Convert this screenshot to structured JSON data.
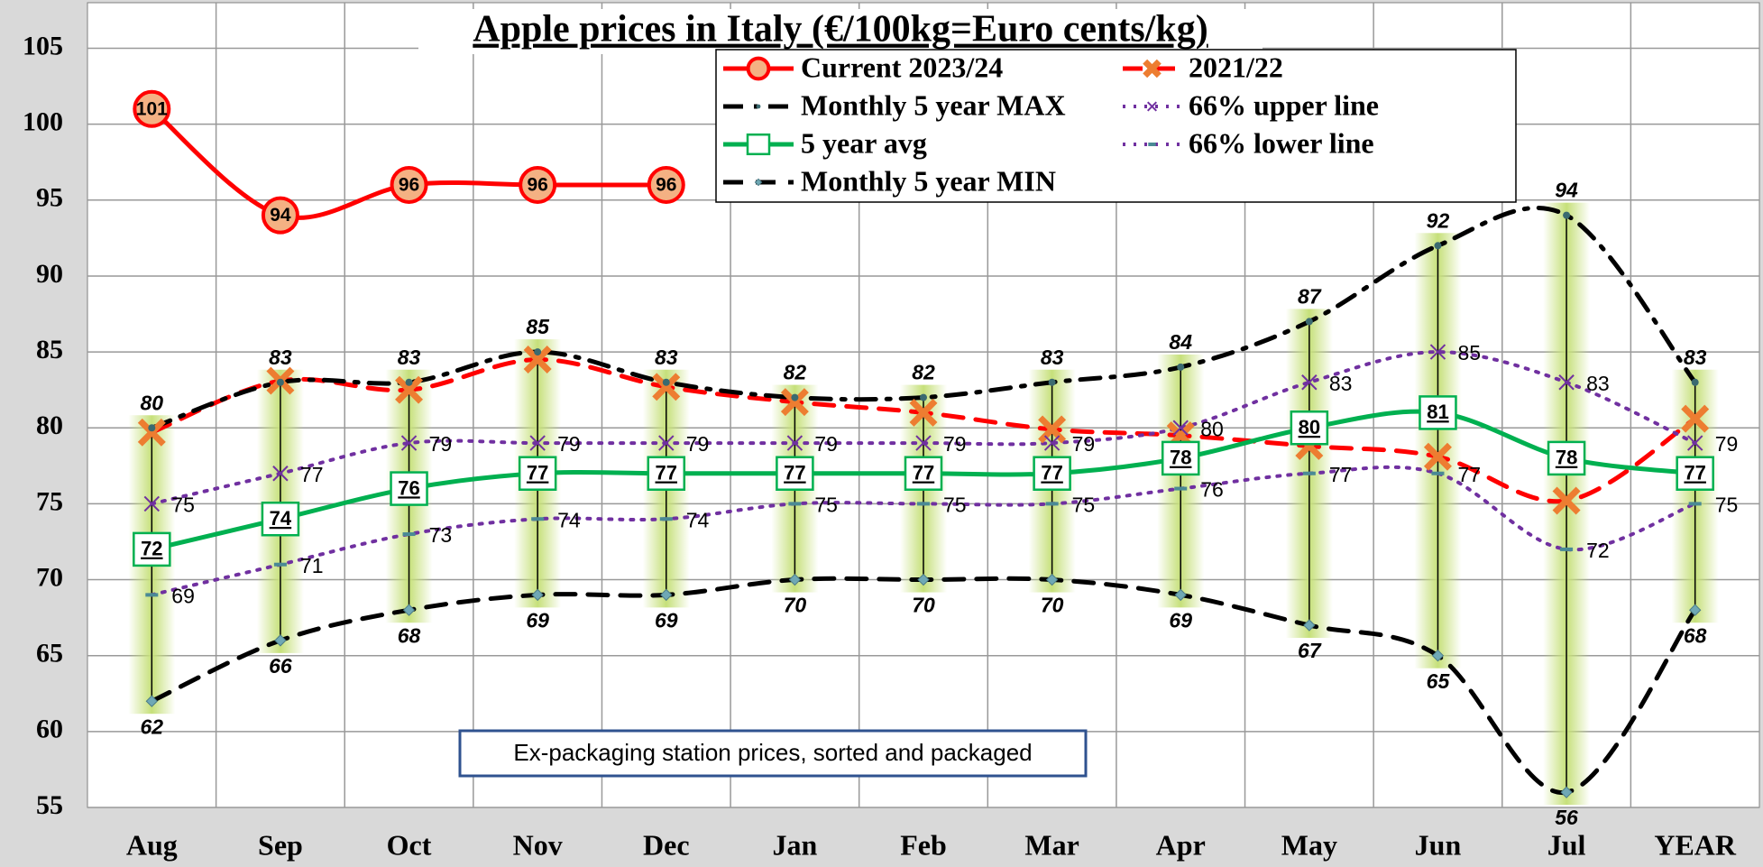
{
  "chart_data": {
    "type": "line",
    "title": "Apple prices in Italy (€/100kg=Euro cents/kg)",
    "annotation": "Ex-packaging station prices, sorted and packaged",
    "categories": [
      "Aug",
      "Sep",
      "Oct",
      "Nov",
      "Dec",
      "Jan",
      "Feb",
      "Mar",
      "Apr",
      "May",
      "Jun",
      "Jul",
      "YEAR"
    ],
    "ylim": [
      55,
      108
    ],
    "yticks": [
      55,
      60,
      65,
      70,
      75,
      80,
      85,
      90,
      95,
      100,
      105
    ],
    "grid": true,
    "legend": "top-right",
    "series": [
      {
        "name": "Current 2023/24",
        "color": "#ff0000",
        "line": "solid",
        "marker": "circle",
        "labels": "inside",
        "values": [
          101,
          94,
          96,
          96,
          96,
          null,
          null,
          null,
          null,
          null,
          null,
          null,
          null
        ]
      },
      {
        "name": "2021/22",
        "color": "#ff0000",
        "line": "dashed",
        "marker": "x",
        "labels": "none",
        "values": [
          79.7,
          83.1,
          82.5,
          84.5,
          82.7,
          81.7,
          81,
          79.9,
          79.5,
          78.8,
          78.1,
          75.2,
          80.6
        ]
      },
      {
        "name": "Monthly 5 year MAX",
        "color": "#000000",
        "line": "dashdot",
        "marker": "dot",
        "labels": "above",
        "values": [
          80,
          83,
          83,
          85,
          83,
          82,
          82,
          83,
          84,
          87,
          92,
          94,
          83
        ]
      },
      {
        "name": "66% upper line",
        "color": "#7030a0",
        "line": "dotted",
        "marker": "x",
        "labels": "right",
        "values": [
          75,
          77,
          79,
          79,
          79,
          79,
          79,
          79,
          80,
          83,
          85,
          83,
          79
        ]
      },
      {
        "name": "5 year avg",
        "color": "#00b050",
        "line": "solid",
        "marker": "square",
        "labels": "square",
        "values": [
          72,
          74,
          76,
          77,
          77,
          77,
          77,
          77,
          78,
          80,
          81,
          78,
          77
        ]
      },
      {
        "name": "66% lower line",
        "color": "#7030a0",
        "line": "dotted",
        "marker": "dash",
        "labels": "right",
        "values": [
          69,
          71,
          73,
          74,
          74,
          75,
          75,
          75,
          76,
          77,
          77,
          72,
          75
        ]
      },
      {
        "name": "Monthly 5 year MIN",
        "color": "#000000",
        "line": "dashed",
        "marker": "diamond",
        "labels": "below",
        "values": [
          62,
          66,
          68,
          69,
          69,
          70,
          70,
          70,
          69,
          67,
          65,
          56,
          68
        ]
      }
    ]
  }
}
